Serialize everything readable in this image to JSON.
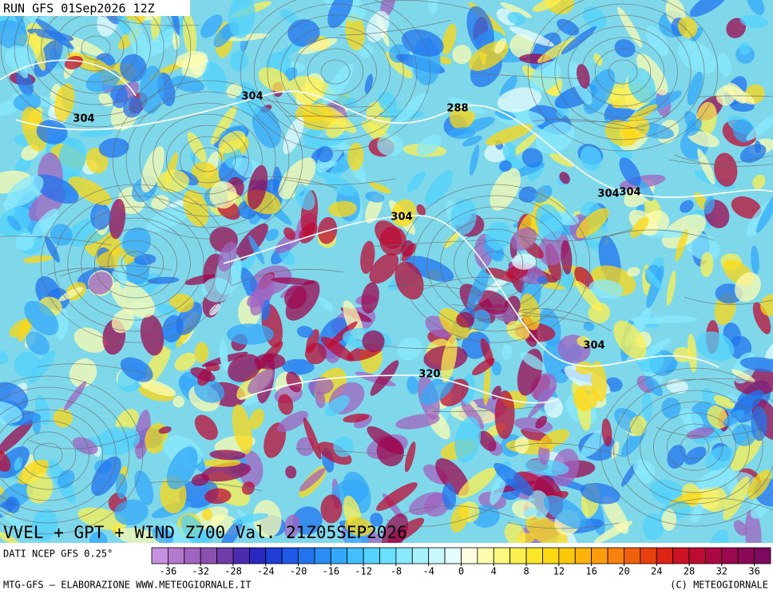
{
  "header": {
    "run": "RUN GFS 01Sep2026 12Z"
  },
  "map": {
    "contour_labels": [
      "304",
      "304",
      "288",
      "304",
      "304",
      "304",
      "304",
      "320"
    ],
    "title": "VVEL + GPT + WIND Z700 Val. 21Z05SEP2026"
  },
  "source": "DATI NCEP GFS 0.25°",
  "colorbar": {
    "range": [
      -38,
      38
    ],
    "ticks": [
      -36,
      -32,
      -28,
      -24,
      -20,
      -16,
      -12,
      -8,
      -4,
      0,
      4,
      8,
      12,
      16,
      20,
      24,
      28,
      32,
      36
    ],
    "colors": [
      "#c890e0",
      "#b47ad0",
      "#a064c0",
      "#8c50b0",
      "#6e3ca6",
      "#4a2cb0",
      "#2a28c0",
      "#1e3ed6",
      "#1e5ae6",
      "#2274ee",
      "#2a8ef4",
      "#34a8f8",
      "#42c0fc",
      "#52d2fc",
      "#6ae0fc",
      "#88eafc",
      "#a8f2fc",
      "#c8f8fc",
      "#e6fcfc",
      "#fcfce0",
      "#fcfcb0",
      "#fcf880",
      "#fcf050",
      "#fce628",
      "#fcd814",
      "#fcc80c",
      "#fcb40c",
      "#fc9c0c",
      "#f8800c",
      "#f0600c",
      "#e8400c",
      "#dc2414",
      "#cc1424",
      "#bc0c34",
      "#ac0844",
      "#9c0850",
      "#8c0858",
      "#7c0860"
    ]
  },
  "footer": {
    "left": "MTG-GFS — ELABORAZIONE WWW.METEOGIORNALE.IT",
    "right": "(C) METEOGIORNALE"
  }
}
